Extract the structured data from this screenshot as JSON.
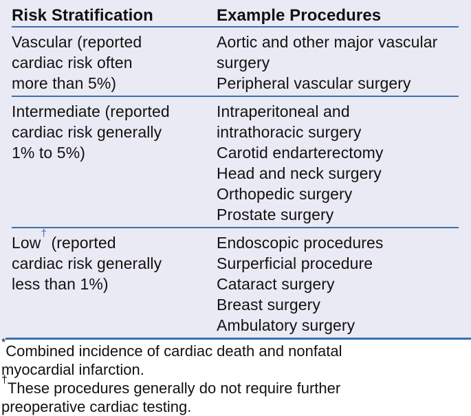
{
  "table": {
    "header": {
      "risk": "Risk Stratification",
      "procedures": "Example Procedures"
    },
    "rows": [
      {
        "risk": "Vascular (reported\ncardiac risk often\nmore than 5%)",
        "procedures": "Aortic and other major vascular\nsurgery\nPeripheral vascular surgery"
      },
      {
        "risk": "Intermediate (reported\ncardiac risk generally\n1% to 5%)",
        "procedures": "Intraperitoneal and\nintrathoracic surgery\nCarotid endarterectomy\nHead and neck surgery\nOrthopedic surgery\nProstate surgery"
      },
      {
        "risk_prefix": "Low",
        "risk_marker": "†",
        "risk_suffix": " (reported\ncardiac risk generally\nless than 1%)",
        "procedures": "Endoscopic procedures\nSurperficial procedure\nCataract surgery\nBreast surgery\nAmbulatory surgery"
      }
    ]
  },
  "footnotes": [
    {
      "marker": "*",
      "text": "Combined incidence of cardiac death and nonfatal\nmyocardial infarction."
    },
    {
      "marker": "†",
      "text": "These procedures generally do not require further\npreoperative cardiac testing."
    }
  ],
  "colors": {
    "table_background": "#eaeaf4",
    "rule_blue": "#3a70ae",
    "dagger_blue": "#4a5bc2",
    "text": "#111111"
  }
}
